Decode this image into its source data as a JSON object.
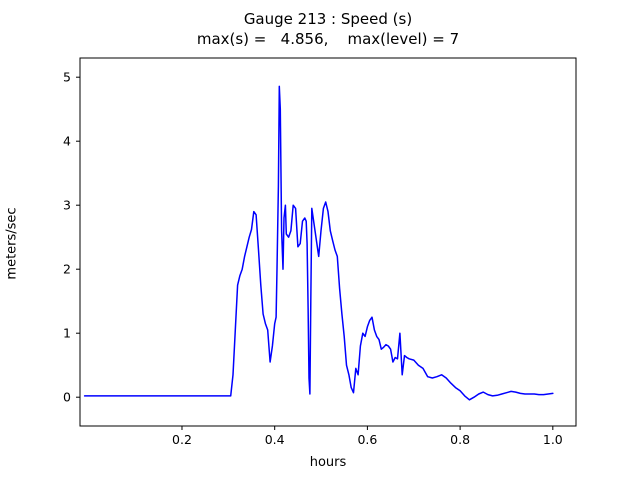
{
  "chart_data": {
    "type": "line",
    "title": "Gauge 213 : Speed (s)",
    "subtitle": "max(s) =   4.856,    max(level) = 7",
    "xlabel": "hours",
    "ylabel": "meters/sec",
    "xlim": [
      -0.02,
      1.05
    ],
    "ylim": [
      -0.45,
      5.3
    ],
    "x_ticks": [
      0.2,
      0.4,
      0.6,
      0.8,
      1.0
    ],
    "x_tick_labels": [
      "0.2",
      "0.4",
      "0.6",
      "0.8",
      "1.0"
    ],
    "y_ticks": [
      0,
      1,
      2,
      3,
      4,
      5
    ],
    "y_tick_labels": [
      "0",
      "1",
      "2",
      "3",
      "4",
      "5"
    ],
    "line_color": "#0000ff",
    "frame_color": "#000000",
    "legend": "none",
    "grid": false,
    "series": [
      {
        "name": "speed",
        "max_value": 4.856,
        "points": [
          [
            -0.01,
            0.02
          ],
          [
            0.05,
            0.02
          ],
          [
            0.1,
            0.02
          ],
          [
            0.15,
            0.02
          ],
          [
            0.2,
            0.02
          ],
          [
            0.25,
            0.02
          ],
          [
            0.3,
            0.02
          ],
          [
            0.305,
            0.02
          ],
          [
            0.31,
            0.35
          ],
          [
            0.315,
            1.05
          ],
          [
            0.32,
            1.75
          ],
          [
            0.325,
            1.9
          ],
          [
            0.33,
            2.0
          ],
          [
            0.335,
            2.2
          ],
          [
            0.34,
            2.35
          ],
          [
            0.345,
            2.5
          ],
          [
            0.35,
            2.62
          ],
          [
            0.355,
            2.9
          ],
          [
            0.36,
            2.85
          ],
          [
            0.365,
            2.3
          ],
          [
            0.37,
            1.75
          ],
          [
            0.375,
            1.3
          ],
          [
            0.38,
            1.15
          ],
          [
            0.385,
            1.05
          ],
          [
            0.39,
            0.55
          ],
          [
            0.395,
            0.8
          ],
          [
            0.4,
            1.15
          ],
          [
            0.403,
            1.25
          ],
          [
            0.405,
            2.0
          ],
          [
            0.408,
            3.3
          ],
          [
            0.41,
            4.856
          ],
          [
            0.412,
            4.5
          ],
          [
            0.415,
            2.6
          ],
          [
            0.418,
            2.0
          ],
          [
            0.42,
            2.8
          ],
          [
            0.423,
            3.0
          ],
          [
            0.425,
            2.55
          ],
          [
            0.43,
            2.5
          ],
          [
            0.435,
            2.6
          ],
          [
            0.44,
            3.0
          ],
          [
            0.445,
            2.95
          ],
          [
            0.45,
            2.35
          ],
          [
            0.455,
            2.4
          ],
          [
            0.46,
            2.75
          ],
          [
            0.465,
            2.8
          ],
          [
            0.468,
            2.75
          ],
          [
            0.47,
            2.4
          ],
          [
            0.472,
            1.4
          ],
          [
            0.474,
            0.3
          ],
          [
            0.476,
            0.05
          ],
          [
            0.478,
            1.5
          ],
          [
            0.48,
            2.95
          ],
          [
            0.485,
            2.7
          ],
          [
            0.49,
            2.45
          ],
          [
            0.495,
            2.2
          ],
          [
            0.5,
            2.6
          ],
          [
            0.505,
            2.95
          ],
          [
            0.51,
            3.05
          ],
          [
            0.515,
            2.9
          ],
          [
            0.52,
            2.6
          ],
          [
            0.525,
            2.45
          ],
          [
            0.53,
            2.3
          ],
          [
            0.535,
            2.2
          ],
          [
            0.54,
            1.7
          ],
          [
            0.545,
            1.3
          ],
          [
            0.55,
            0.95
          ],
          [
            0.555,
            0.5
          ],
          [
            0.56,
            0.35
          ],
          [
            0.565,
            0.15
          ],
          [
            0.57,
            0.07
          ],
          [
            0.575,
            0.45
          ],
          [
            0.58,
            0.35
          ],
          [
            0.585,
            0.8
          ],
          [
            0.59,
            1.0
          ],
          [
            0.595,
            0.95
          ],
          [
            0.6,
            1.1
          ],
          [
            0.605,
            1.2
          ],
          [
            0.61,
            1.25
          ],
          [
            0.615,
            1.05
          ],
          [
            0.62,
            0.95
          ],
          [
            0.625,
            0.9
          ],
          [
            0.63,
            0.75
          ],
          [
            0.635,
            0.78
          ],
          [
            0.64,
            0.82
          ],
          [
            0.645,
            0.8
          ],
          [
            0.65,
            0.75
          ],
          [
            0.655,
            0.55
          ],
          [
            0.66,
            0.62
          ],
          [
            0.665,
            0.6
          ],
          [
            0.67,
            1.0
          ],
          [
            0.675,
            0.35
          ],
          [
            0.68,
            0.65
          ],
          [
            0.685,
            0.62
          ],
          [
            0.69,
            0.6
          ],
          [
            0.7,
            0.58
          ],
          [
            0.71,
            0.5
          ],
          [
            0.72,
            0.45
          ],
          [
            0.73,
            0.32
          ],
          [
            0.74,
            0.3
          ],
          [
            0.75,
            0.32
          ],
          [
            0.76,
            0.35
          ],
          [
            0.77,
            0.3
          ],
          [
            0.78,
            0.22
          ],
          [
            0.79,
            0.15
          ],
          [
            0.8,
            0.1
          ],
          [
            0.81,
            0.02
          ],
          [
            0.82,
            -0.04
          ],
          [
            0.83,
            0.0
          ],
          [
            0.84,
            0.05
          ],
          [
            0.85,
            0.08
          ],
          [
            0.86,
            0.04
          ],
          [
            0.87,
            0.02
          ],
          [
            0.88,
            0.03
          ],
          [
            0.89,
            0.05
          ],
          [
            0.9,
            0.07
          ],
          [
            0.91,
            0.09
          ],
          [
            0.92,
            0.08
          ],
          [
            0.93,
            0.06
          ],
          [
            0.94,
            0.05
          ],
          [
            0.95,
            0.05
          ],
          [
            0.96,
            0.05
          ],
          [
            0.97,
            0.04
          ],
          [
            0.98,
            0.04
          ],
          [
            0.99,
            0.05
          ],
          [
            1.0,
            0.06
          ]
        ]
      }
    ]
  }
}
